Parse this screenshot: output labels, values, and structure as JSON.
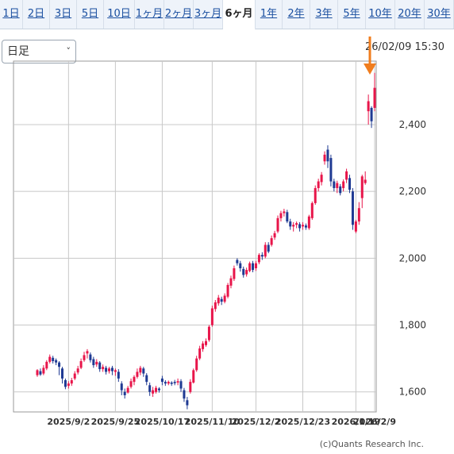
{
  "tabs": [
    {
      "label": "1日",
      "active": false
    },
    {
      "label": "2日",
      "active": false
    },
    {
      "label": "3日",
      "active": false
    },
    {
      "label": "5日",
      "active": false
    },
    {
      "label": "10日",
      "active": false
    },
    {
      "label": "1ヶ月",
      "active": false
    },
    {
      "label": "2ヶ月",
      "active": false
    },
    {
      "label": "3ヶ月",
      "active": false
    },
    {
      "label": "6ヶ月",
      "active": true
    },
    {
      "label": "1年",
      "active": false
    },
    {
      "label": "2年",
      "active": false
    },
    {
      "label": "3年",
      "active": false
    },
    {
      "label": "5年",
      "active": false
    },
    {
      "label": "10年",
      "active": false
    },
    {
      "label": "20年",
      "active": false
    },
    {
      "label": "30年",
      "active": false
    }
  ],
  "interval_select": {
    "value": "日足"
  },
  "timestamp": "26/02/09 15:30",
  "copyright": "(c)Quants Research Inc.",
  "colors": {
    "up": "#e8154a",
    "down": "#1f3a93",
    "grid": "#c8c8c8",
    "marker": "#f07d1e"
  },
  "chart_data": {
    "type": "candlestick",
    "title": "",
    "xlabel": "",
    "ylabel": "",
    "ylim": [
      1540,
      2590
    ],
    "yticks": [
      1600,
      1800,
      2000,
      2200,
      2400
    ],
    "ytick_labels": [
      "1,600",
      "1,800",
      "2,000",
      "2,200",
      "2,400"
    ],
    "xtick_labels": [
      "2025/9/2",
      "2025/9/25",
      "2025/10/17",
      "2025/11/10",
      "2025/12/2",
      "2025/12/23",
      "2026/1/19",
      "2026/2/9"
    ],
    "grid": true,
    "latest_marker": "arrow",
    "candles": [
      [
        1650,
        1665,
        1645,
        1668
      ],
      [
        1662,
        1652,
        1648,
        1670
      ],
      [
        1655,
        1672,
        1650,
        1680
      ],
      [
        1670,
        1690,
        1665,
        1695
      ],
      [
        1690,
        1705,
        1685,
        1712
      ],
      [
        1702,
        1692,
        1685,
        1708
      ],
      [
        1695,
        1688,
        1680,
        1700
      ],
      [
        1688,
        1675,
        1650,
        1692
      ],
      [
        1670,
        1640,
        1625,
        1675
      ],
      [
        1635,
        1615,
        1608,
        1640
      ],
      [
        1618,
        1625,
        1610,
        1632
      ],
      [
        1625,
        1635,
        1618,
        1642
      ],
      [
        1640,
        1655,
        1635,
        1662
      ],
      [
        1658,
        1670,
        1652,
        1678
      ],
      [
        1672,
        1692,
        1668,
        1700
      ],
      [
        1695,
        1710,
        1690,
        1720
      ],
      [
        1715,
        1722,
        1700,
        1728
      ],
      [
        1712,
        1695,
        1688,
        1718
      ],
      [
        1698,
        1680,
        1672,
        1705
      ],
      [
        1682,
        1690,
        1675,
        1698
      ],
      [
        1688,
        1668,
        1660,
        1692
      ],
      [
        1668,
        1675,
        1660,
        1682
      ],
      [
        1672,
        1660,
        1652,
        1678
      ],
      [
        1662,
        1670,
        1655,
        1675
      ],
      [
        1672,
        1662,
        1650,
        1678
      ],
      [
        1660,
        1665,
        1648,
        1670
      ],
      [
        1660,
        1640,
        1630,
        1668
      ],
      [
        1625,
        1605,
        1590,
        1632
      ],
      [
        1600,
        1590,
        1580,
        1610
      ],
      [
        1598,
        1612,
        1595,
        1618
      ],
      [
        1615,
        1632,
        1610,
        1640
      ],
      [
        1630,
        1645,
        1620,
        1650
      ],
      [
        1645,
        1660,
        1640,
        1670
      ],
      [
        1658,
        1672,
        1650,
        1678
      ],
      [
        1670,
        1655,
        1645,
        1675
      ],
      [
        1650,
        1630,
        1620,
        1656
      ],
      [
        1620,
        1600,
        1588,
        1628
      ],
      [
        1595,
        1605,
        1585,
        1615
      ],
      [
        1600,
        1612,
        1595,
        1618
      ],
      [
        1610,
        1605,
        1598,
        1614
      ],
      [
        1640,
        1630,
        1620,
        1648
      ],
      [
        1630,
        1625,
        1618,
        1635
      ],
      [
        1625,
        1630,
        1620,
        1634
      ],
      [
        1628,
        1624,
        1618,
        1632
      ],
      [
        1630,
        1626,
        1620,
        1636
      ],
      [
        1628,
        1632,
        1620,
        1640
      ],
      [
        1632,
        1610,
        1600,
        1638
      ],
      [
        1605,
        1580,
        1570,
        1612
      ],
      [
        1575,
        1560,
        1548,
        1585
      ],
      [
        1600,
        1630,
        1595,
        1638
      ],
      [
        1628,
        1665,
        1625,
        1670
      ],
      [
        1665,
        1700,
        1660,
        1708
      ],
      [
        1700,
        1730,
        1695,
        1738
      ],
      [
        1728,
        1745,
        1720,
        1752
      ],
      [
        1740,
        1752,
        1735,
        1760
      ],
      [
        1755,
        1795,
        1750,
        1800
      ],
      [
        1800,
        1850,
        1795,
        1858
      ],
      [
        1848,
        1868,
        1840,
        1875
      ],
      [
        1865,
        1882,
        1858,
        1890
      ],
      [
        1878,
        1870,
        1860,
        1885
      ],
      [
        1870,
        1888,
        1865,
        1895
      ],
      [
        1885,
        1920,
        1880,
        1926
      ],
      [
        1918,
        1940,
        1910,
        1948
      ],
      [
        1938,
        1970,
        1932,
        1978
      ],
      [
        1995,
        1985,
        1978,
        2000
      ],
      [
        1985,
        1970,
        1960,
        1992
      ],
      [
        1968,
        1950,
        1942,
        1975
      ],
      [
        1952,
        1965,
        1945,
        1972
      ],
      [
        1962,
        1985,
        1958,
        1990
      ],
      [
        1985,
        1965,
        1958,
        1992
      ],
      [
        1970,
        1985,
        1962,
        1992
      ],
      [
        1988,
        2010,
        1982,
        2015
      ],
      [
        2010,
        2005,
        1995,
        2018
      ],
      [
        2005,
        2040,
        2000,
        2048
      ],
      [
        2040,
        2020,
        2015,
        2048
      ],
      [
        2040,
        2060,
        2035,
        2068
      ],
      [
        2062,
        2075,
        2055,
        2082
      ],
      [
        2080,
        2120,
        2075,
        2128
      ],
      [
        2120,
        2135,
        2110,
        2142
      ],
      [
        2135,
        2140,
        2125,
        2148
      ],
      [
        2138,
        2110,
        2105,
        2145
      ],
      [
        2110,
        2095,
        2085,
        2118
      ],
      [
        2095,
        2100,
        2080,
        2108
      ],
      [
        2100,
        2105,
        2090,
        2110
      ],
      [
        2102,
        2090,
        2080,
        2108
      ],
      [
        2095,
        2100,
        2085,
        2108
      ],
      [
        2098,
        2092,
        2085,
        2104
      ],
      [
        2090,
        2125,
        2085,
        2130
      ],
      [
        2120,
        2165,
        2115,
        2170
      ],
      [
        2165,
        2210,
        2160,
        2218
      ],
      [
        2210,
        2230,
        2200,
        2238
      ],
      [
        2228,
        2250,
        2218,
        2258
      ],
      [
        2290,
        2310,
        2280,
        2320
      ],
      [
        2325,
        2290,
        2270,
        2338
      ],
      [
        2300,
        2230,
        2215,
        2310
      ],
      [
        2230,
        2210,
        2200,
        2238
      ],
      [
        2210,
        2225,
        2195,
        2232
      ],
      [
        2215,
        2195,
        2188,
        2222
      ],
      [
        2210,
        2230,
        2200,
        2236
      ],
      [
        2235,
        2260,
        2225,
        2268
      ],
      [
        2240,
        2205,
        2195,
        2250
      ],
      [
        2200,
        2100,
        2085,
        2210
      ],
      [
        2080,
        2110,
        2075,
        2115
      ],
      [
        2110,
        2150,
        2100,
        2168
      ],
      [
        2180,
        2245,
        2150,
        2250
      ],
      [
        2225,
        2235,
        2220,
        2260
      ],
      [
        2440,
        2470,
        2400,
        2490
      ],
      [
        2450,
        2410,
        2390,
        2455
      ],
      [
        2450,
        2510,
        2440,
        2555
      ]
    ]
  }
}
